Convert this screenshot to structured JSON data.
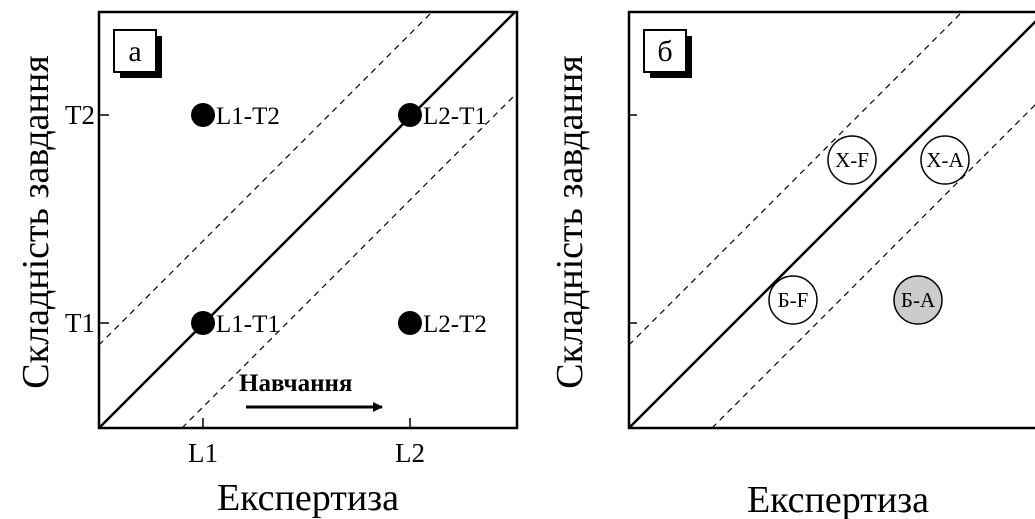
{
  "panel_a": {
    "letter": "а",
    "y_axis_title": "Складність завдання",
    "x_axis_title": "Експертиза",
    "x_ticks": [
      "L1",
      "L2"
    ],
    "y_ticks": [
      "T2",
      "T1"
    ],
    "arrow_label": "Навчання",
    "points": [
      {
        "label": "L1-T2"
      },
      {
        "label": "L2-T1"
      },
      {
        "label": "L1-T1"
      },
      {
        "label": "L2-T2"
      }
    ]
  },
  "panel_b": {
    "letter": "б",
    "y_axis_title": "Складність завдання",
    "x_axis_title": "Експертиза",
    "circles": [
      {
        "label": "Х-F",
        "fill": "#ffffff"
      },
      {
        "label": "Х-А",
        "fill": "#ffffff"
      },
      {
        "label": "Б-F",
        "fill": "#ffffff"
      },
      {
        "label": "Б-А",
        "fill": "#cccccc"
      }
    ]
  }
}
